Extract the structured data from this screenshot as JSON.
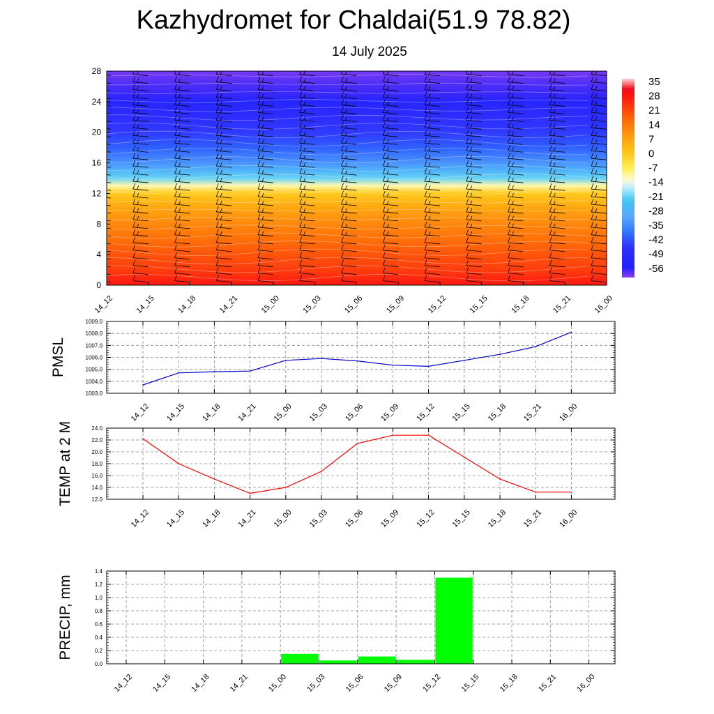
{
  "title": "Kazhydromet for Chaldai(51.9 78.82)",
  "subtitle": "14 July 2025",
  "chart_data": [
    {
      "type": "heatmap",
      "title": "",
      "x_categories": [
        "14_12",
        "14_15",
        "14_18",
        "14_21",
        "15_00",
        "15_03",
        "15_06",
        "15_09",
        "15_12",
        "15_15",
        "15_18",
        "15_21",
        "16_00"
      ],
      "y_ticks": [
        "0",
        "4",
        "8",
        "12",
        "16",
        "20",
        "24",
        "28"
      ],
      "ylim": [
        0,
        28
      ],
      "colorbar": {
        "labels": [
          "35",
          "28",
          "21",
          "14",
          "7",
          "0",
          "-7",
          "-14",
          "-21",
          "-28",
          "-35",
          "-42",
          "-49",
          "-56"
        ],
        "range": [
          -60,
          38
        ]
      },
      "temperature_profile": [
        {
          "level": 0,
          "value": 30
        },
        {
          "level": 2,
          "value": 24
        },
        {
          "level": 4,
          "value": 21
        },
        {
          "level": 6,
          "value": 17
        },
        {
          "level": 8,
          "value": 13
        },
        {
          "level": 10,
          "value": 8
        },
        {
          "level": 12,
          "value": 1
        },
        {
          "level": 13,
          "value": -10
        },
        {
          "level": 14,
          "value": -20
        },
        {
          "level": 15,
          "value": -27
        },
        {
          "level": 16,
          "value": -33
        },
        {
          "level": 18,
          "value": -40
        },
        {
          "level": 20,
          "value": -44
        },
        {
          "level": 22,
          "value": -47
        },
        {
          "level": 24,
          "value": -52
        },
        {
          "level": 26,
          "value": -57
        },
        {
          "level": 28,
          "value": -59
        }
      ],
      "wind_barbs": "present"
    },
    {
      "type": "line",
      "ylabel": "PMSL",
      "x_categories": [
        "14_12",
        "14_15",
        "14_18",
        "14_21",
        "15_00",
        "15_03",
        "15_06",
        "15_09",
        "15_12",
        "15_15",
        "15_18",
        "15_21",
        "16_00"
      ],
      "y_ticks": [
        "1003.0",
        "1004.0",
        "1005.0",
        "1006.0",
        "1007.0",
        "1008.0",
        "1009.0"
      ],
      "ylim": [
        1003,
        1009
      ],
      "color": "#0000cc",
      "series": [
        {
          "values": [
            1003.7,
            1004.7,
            1004.8,
            1004.85,
            1005.75,
            1005.9,
            1005.7,
            1005.35,
            1005.25,
            1005.75,
            1006.25,
            1006.9,
            1008.1
          ]
        }
      ]
    },
    {
      "type": "line",
      "ylabel": "TEMP at 2 M",
      "x_categories": [
        "14_12",
        "14_15",
        "14_18",
        "14_21",
        "15_00",
        "15_03",
        "15_06",
        "15_09",
        "15_12",
        "15_15",
        "15_18",
        "15_21",
        "16_00"
      ],
      "y_ticks": [
        "12.0",
        "14.0",
        "16.0",
        "18.0",
        "20.0",
        "22.0",
        "24.0"
      ],
      "ylim": [
        12,
        24
      ],
      "color": "#ff0000",
      "series": [
        {
          "values": [
            22.2,
            18.0,
            15.4,
            13.0,
            14.0,
            16.7,
            21.4,
            22.8,
            22.8,
            19.1,
            15.4,
            13.2,
            13.2
          ]
        }
      ]
    },
    {
      "type": "bar",
      "ylabel": "PRECIP, mm",
      "x_categories": [
        "14_12",
        "14_15",
        "14_18",
        "14_21",
        "15_00",
        "15_03",
        "15_06",
        "15_09",
        "15_12",
        "15_15",
        "15_18",
        "15_21",
        "16_00"
      ],
      "y_ticks": [
        "0.0",
        "0.2",
        "0.4",
        "0.6",
        "0.8",
        "1.0",
        "1.2",
        "1.4"
      ],
      "ylim": [
        0,
        1.4
      ],
      "color": "#00ff00",
      "values": [
        0,
        0,
        0,
        0,
        0,
        0.15,
        0.05,
        0.11,
        0.06,
        1.3,
        0,
        0,
        0
      ]
    }
  ]
}
